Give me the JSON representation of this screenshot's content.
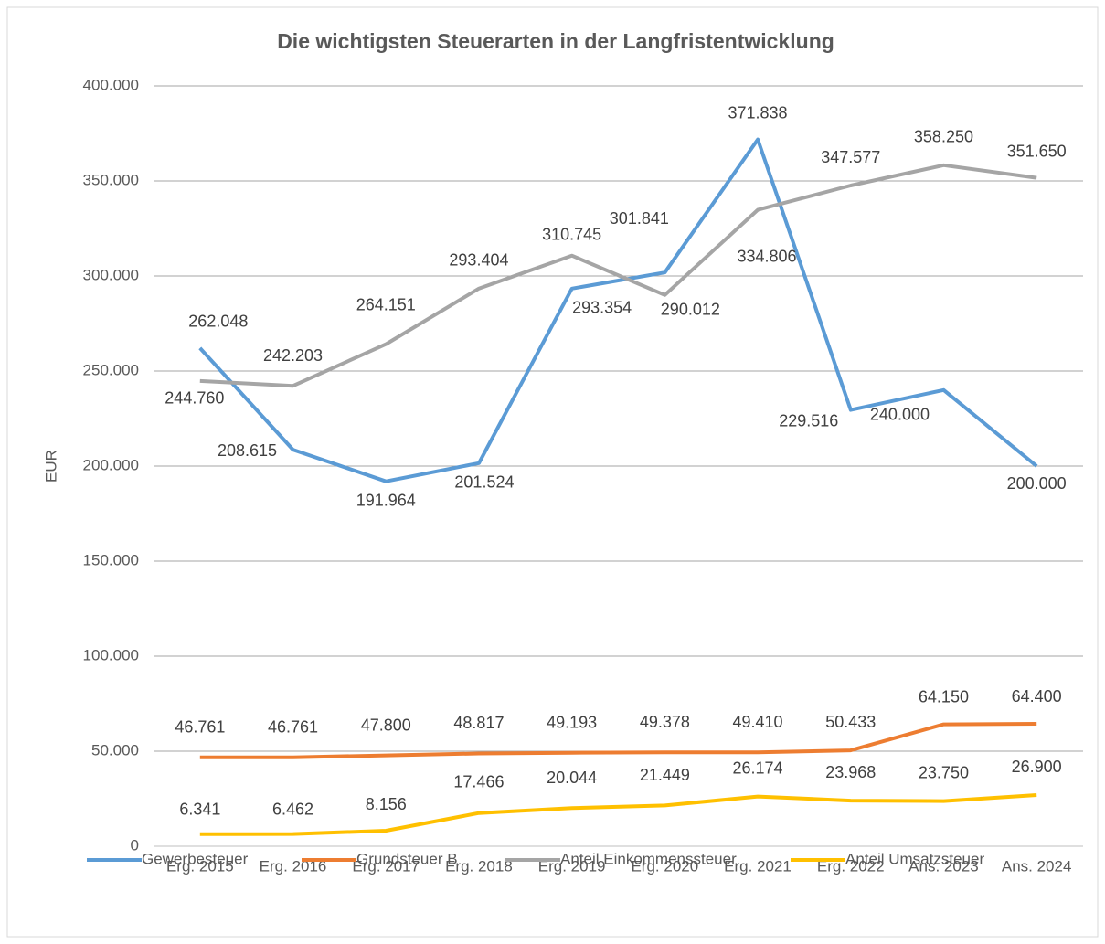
{
  "chart_data": {
    "type": "line",
    "title": "Die wichtigsten Steuerarten in der Langfristentwicklung",
    "y_label": "EUR",
    "categories": [
      "Erg. 2015",
      "Erg. 2016",
      "Erg. 2017",
      "Erg. 2018",
      "Erg. 2019",
      "Erg. 2020",
      "Erg. 2021",
      "Erg. 2022",
      "Ans. 2023",
      "Ans. 2024"
    ],
    "ylim": [
      0,
      400000
    ],
    "yticks": [
      0,
      {
        "value": 50000,
        "label": "50.000"
      },
      {
        "value": 100000,
        "label": "100.000"
      },
      {
        "value": 150000,
        "label": "150.000"
      },
      {
        "value": 200000,
        "label": "200.000"
      },
      {
        "value": 250000,
        "label": "250.000"
      },
      {
        "value": 300000,
        "label": "300.000"
      },
      {
        "value": 350000,
        "label": "350.000"
      },
      {
        "value": 400000,
        "label": "400.000"
      }
    ],
    "grid": true,
    "legend": "bottom",
    "series": [
      {
        "name": "Gewerbesteuer",
        "color": "#5b9bd5",
        "values": [
          262048,
          208615,
          191964,
          201524,
          293354,
          301841,
          371838,
          229516,
          240000,
          200000
        ],
        "value_labels": [
          "262.048",
          "208.615",
          "191.964",
          "201.524",
          "293.354",
          "301.841",
          "371.838",
          "229.516",
          "240.000",
          "200.000"
        ]
      },
      {
        "name": "Grundsteuer B",
        "color": "#ed7d31",
        "values": [
          46761,
          46761,
          47800,
          48817,
          49193,
          49378,
          49410,
          50433,
          64150,
          64400
        ],
        "value_labels": [
          "46.761",
          "46.761",
          "47.800",
          "48.817",
          "49.193",
          "49.378",
          "49.410",
          "50.433",
          "64.150",
          "64.400"
        ]
      },
      {
        "name": "Anteil Einkommenssteuer",
        "color": "#a5a5a5",
        "values": [
          244760,
          242203,
          264151,
          293404,
          310745,
          290012,
          334806,
          347577,
          358250,
          351650
        ],
        "value_labels": [
          "244.760",
          "242.203",
          "264.151",
          "293.404",
          "310.745",
          "290.012",
          "334.806",
          "347.577",
          "358.250",
          "351.650"
        ]
      },
      {
        "name": "Anteil Umsatzsteuer",
        "color": "#ffc000",
        "values": [
          6341,
          6462,
          8156,
          17466,
          20044,
          21449,
          26174,
          23968,
          23750,
          26900
        ],
        "value_labels": [
          "6.341",
          "6.462",
          "8.156",
          "17.466",
          "20.044",
          "21.449",
          "26.174",
          "23.968",
          "23.750",
          "26.900"
        ]
      }
    ]
  }
}
